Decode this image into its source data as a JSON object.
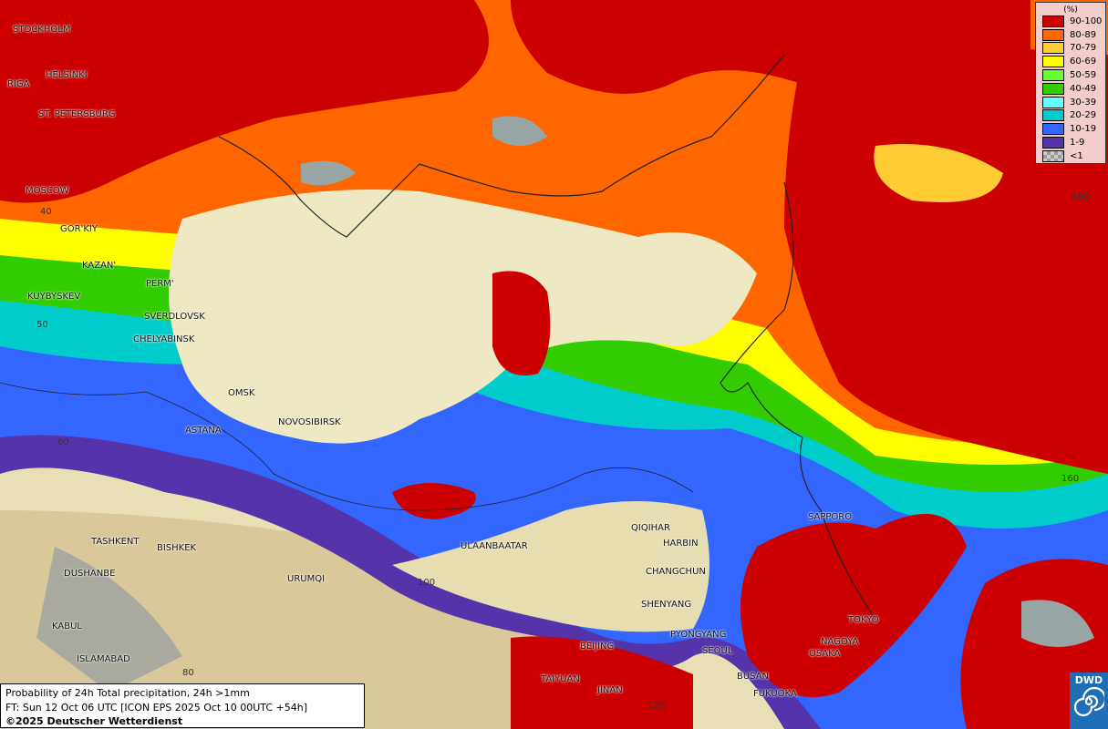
{
  "legend": {
    "unit": "(%)",
    "items": [
      {
        "label": "90-100",
        "color": "#cc0000"
      },
      {
        "label": "80-89",
        "color": "#ff6600"
      },
      {
        "label": "70-79",
        "color": "#ffcc33"
      },
      {
        "label": "60-69",
        "color": "#ffff00"
      },
      {
        "label": "50-59",
        "color": "#66ff33"
      },
      {
        "label": "40-49",
        "color": "#33cc00"
      },
      {
        "label": "30-39",
        "color": "#66ffff"
      },
      {
        "label": "20-29",
        "color": "#00cccc"
      },
      {
        "label": "10-19",
        "color": "#3366ff"
      },
      {
        "label": "1-9",
        "color": "#5533aa"
      },
      {
        "label": "<1",
        "color": "checker"
      }
    ]
  },
  "caption": {
    "line1": "Probability of 24h Total precipitation, 24h >1mm",
    "line2": "FT: Sun 12 Oct 06 UTC [ICON EPS 2025 Oct 10 00UTC +54h]",
    "line3": "©2025 Deutscher Wetterdienst"
  },
  "logo": {
    "text": "DWD"
  },
  "cities": [
    "STOCKHOLM",
    "HELSINKI",
    "RIGA",
    "ST. PETERSBURG",
    "MOSCOW",
    "GOR'KIY",
    "KAZAN'",
    "PERM'",
    "KUYBYSKEV",
    "SVERDLOVSK",
    "CHELYABINSK",
    "OMSK",
    "ASTANA",
    "NOVOSIBIRSK",
    "TASHKENT",
    "BISHKEK",
    "DUSHANBE",
    "URUMQI",
    "KABUL",
    "ISLAMABAD",
    "ULAANBAATAR",
    "QIQIHAR",
    "HARBIN",
    "CHANGCHUN",
    "SHENYANG",
    "PYONGYANG",
    "BEIJING",
    "SEOUL",
    "TAIYUAN",
    "JINAN",
    "BUSAN",
    "FUKUOKA",
    "SAPPORO",
    "TOKYO",
    "NAGOYA",
    "OSAKA"
  ],
  "grid_labels": [
    "40",
    "50",
    "60",
    "80",
    "100",
    "120",
    "160",
    "180"
  ]
}
